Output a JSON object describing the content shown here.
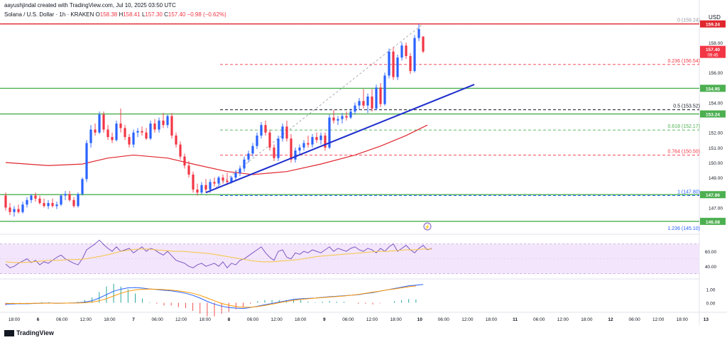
{
  "header": {
    "credit": "aayushjindal created with TradingView.com, Jul 10, 2025 03:50 UTC",
    "symbol": "Solana / U.S. Dollar · 1h · KRAKEN",
    "o_label": "O",
    "o": "158.38",
    "h_label": "H",
    "h": "158.41",
    "l_label": "L",
    "l": "157.30",
    "c_label": "C",
    "c": "157.40",
    "change": "−0.98 (−0.62%)",
    "currency": "USD"
  },
  "footer": {
    "brand": "TradingView"
  },
  "colors": {
    "up": "#2962ff",
    "down": "#f23645",
    "level": "#4caf50",
    "trend": "#1e2ecc",
    "sma": "#e0262e",
    "fib": "#f23645",
    "fib_green": "#4caf50",
    "fib_blue": "#2962ff",
    "rsi": "#7e57c2",
    "rsi_ma": "#f5c542",
    "macd": "#2962ff",
    "macd_signal": "#ff9800",
    "hist": "#26a69a",
    "hist_neg": "#ef5350"
  },
  "chart_data": {
    "type": "candlestick",
    "price_scale": {
      "ticks": [
        "158.00",
        "156.00",
        "155.00",
        "154.00",
        "152.00",
        "151.00",
        "150.00",
        "149.00",
        "147.00"
      ],
      "current_price": "157.40",
      "countdown": "09:45"
    },
    "time_ticks": [
      "18:00",
      "6",
      "06:00",
      "12:00",
      "18:00",
      "7",
      "06:00",
      "12:00",
      "18:00",
      "8",
      "06:00",
      "12:00",
      "18:00",
      "9",
      "06:00",
      "12:00",
      "18:00",
      "10",
      "06:00",
      "12:00",
      "18:00",
      "11",
      "06:00",
      "12:00",
      "18:00",
      "12",
      "06:00",
      "12:00",
      "18:00",
      "13"
    ],
    "candles": [
      {
        "o": 147.8,
        "h": 148.0,
        "l": 146.8,
        "c": 147.0
      },
      {
        "o": 147.0,
        "h": 147.3,
        "l": 146.5,
        "c": 146.7
      },
      {
        "o": 146.7,
        "h": 147.1,
        "l": 146.4,
        "c": 146.9
      },
      {
        "o": 146.9,
        "h": 147.2,
        "l": 146.6,
        "c": 146.7
      },
      {
        "o": 146.7,
        "h": 147.4,
        "l": 146.6,
        "c": 147.2
      },
      {
        "o": 147.2,
        "h": 147.7,
        "l": 147.0,
        "c": 147.5
      },
      {
        "o": 147.5,
        "h": 147.9,
        "l": 147.3,
        "c": 147.8
      },
      {
        "o": 147.8,
        "h": 148.0,
        "l": 147.4,
        "c": 147.6
      },
      {
        "o": 147.6,
        "h": 147.8,
        "l": 147.2,
        "c": 147.3
      },
      {
        "o": 147.3,
        "h": 147.6,
        "l": 147.0,
        "c": 147.1
      },
      {
        "o": 147.1,
        "h": 147.5,
        "l": 146.9,
        "c": 147.3
      },
      {
        "o": 147.3,
        "h": 147.6,
        "l": 147.0,
        "c": 147.1
      },
      {
        "o": 147.1,
        "h": 147.4,
        "l": 146.9,
        "c": 147.2
      },
      {
        "o": 147.2,
        "h": 147.9,
        "l": 147.1,
        "c": 147.8
      },
      {
        "o": 147.8,
        "h": 148.1,
        "l": 147.5,
        "c": 147.9
      },
      {
        "o": 147.9,
        "h": 148.1,
        "l": 147.4,
        "c": 147.5
      },
      {
        "o": 147.5,
        "h": 147.7,
        "l": 147.0,
        "c": 147.1
      },
      {
        "o": 147.1,
        "h": 148.0,
        "l": 147.0,
        "c": 147.9
      },
      {
        "o": 147.9,
        "h": 149.0,
        "l": 147.8,
        "c": 148.9
      },
      {
        "o": 148.9,
        "h": 151.5,
        "l": 148.7,
        "c": 151.3
      },
      {
        "o": 151.3,
        "h": 152.5,
        "l": 151.0,
        "c": 152.2
      },
      {
        "o": 152.2,
        "h": 152.6,
        "l": 151.8,
        "c": 152.0
      },
      {
        "o": 152.0,
        "h": 153.4,
        "l": 151.9,
        "c": 153.2
      },
      {
        "o": 153.2,
        "h": 153.4,
        "l": 152.0,
        "c": 152.2
      },
      {
        "o": 152.2,
        "h": 152.5,
        "l": 151.5,
        "c": 151.7
      },
      {
        "o": 151.7,
        "h": 152.0,
        "l": 151.3,
        "c": 151.5
      },
      {
        "o": 151.5,
        "h": 152.8,
        "l": 151.4,
        "c": 152.6
      },
      {
        "o": 152.6,
        "h": 153.6,
        "l": 152.0,
        "c": 152.3
      },
      {
        "o": 152.3,
        "h": 152.5,
        "l": 151.5,
        "c": 151.7
      },
      {
        "o": 151.7,
        "h": 151.9,
        "l": 151.0,
        "c": 151.2
      },
      {
        "o": 151.2,
        "h": 152.2,
        "l": 151.0,
        "c": 152.0
      },
      {
        "o": 152.0,
        "h": 152.3,
        "l": 151.7,
        "c": 152.1
      },
      {
        "o": 152.1,
        "h": 152.4,
        "l": 151.8,
        "c": 152.0
      },
      {
        "o": 152.0,
        "h": 152.3,
        "l": 151.5,
        "c": 151.6
      },
      {
        "o": 151.6,
        "h": 152.8,
        "l": 151.5,
        "c": 152.6
      },
      {
        "o": 152.6,
        "h": 152.9,
        "l": 152.0,
        "c": 152.2
      },
      {
        "o": 152.2,
        "h": 153.0,
        "l": 152.0,
        "c": 152.8
      },
      {
        "o": 152.8,
        "h": 153.3,
        "l": 152.3,
        "c": 152.5
      },
      {
        "o": 152.5,
        "h": 153.2,
        "l": 152.3,
        "c": 153.1
      },
      {
        "o": 153.1,
        "h": 153.3,
        "l": 151.6,
        "c": 151.8
      },
      {
        "o": 151.8,
        "h": 152.0,
        "l": 151.0,
        "c": 151.2
      },
      {
        "o": 151.2,
        "h": 151.4,
        "l": 150.2,
        "c": 150.4
      },
      {
        "o": 150.4,
        "h": 150.6,
        "l": 149.6,
        "c": 149.8
      },
      {
        "o": 149.8,
        "h": 150.1,
        "l": 149.0,
        "c": 149.2
      },
      {
        "o": 149.2,
        "h": 149.4,
        "l": 148.0,
        "c": 148.2
      },
      {
        "o": 148.2,
        "h": 148.6,
        "l": 147.8,
        "c": 148.0
      },
      {
        "o": 148.0,
        "h": 148.7,
        "l": 147.9,
        "c": 148.5
      },
      {
        "o": 148.5,
        "h": 148.9,
        "l": 148.0,
        "c": 148.2
      },
      {
        "o": 148.2,
        "h": 148.9,
        "l": 148.1,
        "c": 148.7
      },
      {
        "o": 148.7,
        "h": 149.0,
        "l": 148.4,
        "c": 148.6
      },
      {
        "o": 148.6,
        "h": 149.1,
        "l": 148.4,
        "c": 149.0
      },
      {
        "o": 149.0,
        "h": 149.2,
        "l": 148.6,
        "c": 148.8
      },
      {
        "o": 148.8,
        "h": 149.3,
        "l": 148.5,
        "c": 148.7
      },
      {
        "o": 148.7,
        "h": 149.1,
        "l": 148.6,
        "c": 149.0
      },
      {
        "o": 149.0,
        "h": 149.5,
        "l": 148.8,
        "c": 149.3
      },
      {
        "o": 149.3,
        "h": 149.8,
        "l": 149.1,
        "c": 149.6
      },
      {
        "o": 149.6,
        "h": 150.4,
        "l": 149.4,
        "c": 150.2
      },
      {
        "o": 150.2,
        "h": 150.8,
        "l": 150.0,
        "c": 150.6
      },
      {
        "o": 150.6,
        "h": 151.3,
        "l": 150.4,
        "c": 151.1
      },
      {
        "o": 151.1,
        "h": 152.0,
        "l": 150.9,
        "c": 151.8
      },
      {
        "o": 151.8,
        "h": 152.7,
        "l": 151.6,
        "c": 152.5
      },
      {
        "o": 152.5,
        "h": 152.8,
        "l": 151.8,
        "c": 152.0
      },
      {
        "o": 152.0,
        "h": 152.2,
        "l": 150.8,
        "c": 151.0
      },
      {
        "o": 151.0,
        "h": 151.2,
        "l": 150.1,
        "c": 150.3
      },
      {
        "o": 150.3,
        "h": 151.8,
        "l": 150.1,
        "c": 151.6
      },
      {
        "o": 151.6,
        "h": 152.6,
        "l": 151.4,
        "c": 152.4
      },
      {
        "o": 152.4,
        "h": 152.8,
        "l": 151.4,
        "c": 151.6
      },
      {
        "o": 151.6,
        "h": 151.9,
        "l": 150.0,
        "c": 150.2
      },
      {
        "o": 150.2,
        "h": 151.0,
        "l": 150.0,
        "c": 150.8
      },
      {
        "o": 150.8,
        "h": 151.2,
        "l": 150.5,
        "c": 151.0
      },
      {
        "o": 151.0,
        "h": 151.5,
        "l": 150.8,
        "c": 151.3
      },
      {
        "o": 151.3,
        "h": 151.8,
        "l": 151.0,
        "c": 151.2
      },
      {
        "o": 151.2,
        "h": 151.9,
        "l": 151.0,
        "c": 151.7
      },
      {
        "o": 151.7,
        "h": 152.0,
        "l": 151.3,
        "c": 151.5
      },
      {
        "o": 151.5,
        "h": 152.0,
        "l": 151.2,
        "c": 151.8
      },
      {
        "o": 151.8,
        "h": 152.0,
        "l": 150.8,
        "c": 151.0
      },
      {
        "o": 151.0,
        "h": 153.2,
        "l": 150.9,
        "c": 153.0
      },
      {
        "o": 153.0,
        "h": 153.5,
        "l": 152.6,
        "c": 152.8
      },
      {
        "o": 152.8,
        "h": 153.1,
        "l": 152.5,
        "c": 152.9
      },
      {
        "o": 152.9,
        "h": 153.3,
        "l": 152.6,
        "c": 153.1
      },
      {
        "o": 153.1,
        "h": 153.4,
        "l": 152.8,
        "c": 153.0
      },
      {
        "o": 153.0,
        "h": 153.6,
        "l": 152.9,
        "c": 153.4
      },
      {
        "o": 153.4,
        "h": 154.0,
        "l": 153.2,
        "c": 153.8
      },
      {
        "o": 153.8,
        "h": 154.3,
        "l": 153.5,
        "c": 154.1
      },
      {
        "o": 154.1,
        "h": 154.9,
        "l": 153.6,
        "c": 153.8
      },
      {
        "o": 153.8,
        "h": 154.6,
        "l": 153.3,
        "c": 154.4
      },
      {
        "o": 154.4,
        "h": 154.9,
        "l": 153.4,
        "c": 153.6
      },
      {
        "o": 153.6,
        "h": 155.2,
        "l": 153.5,
        "c": 155.0
      },
      {
        "o": 155.0,
        "h": 155.3,
        "l": 153.7,
        "c": 153.9
      },
      {
        "o": 153.9,
        "h": 156.0,
        "l": 153.8,
        "c": 155.8
      },
      {
        "o": 155.8,
        "h": 157.6,
        "l": 155.6,
        "c": 157.4
      },
      {
        "o": 157.4,
        "h": 157.7,
        "l": 155.5,
        "c": 155.7
      },
      {
        "o": 155.7,
        "h": 157.2,
        "l": 155.5,
        "c": 157.0
      },
      {
        "o": 157.0,
        "h": 158.0,
        "l": 156.8,
        "c": 157.8
      },
      {
        "o": 157.8,
        "h": 158.0,
        "l": 156.9,
        "c": 157.1
      },
      {
        "o": 157.1,
        "h": 157.3,
        "l": 155.9,
        "c": 156.1
      },
      {
        "o": 156.1,
        "h": 158.5,
        "l": 156.0,
        "c": 158.3
      },
      {
        "o": 158.3,
        "h": 159.24,
        "l": 158.1,
        "c": 158.9
      },
      {
        "o": 158.4,
        "h": 158.41,
        "l": 157.3,
        "c": 157.4
      }
    ],
    "sma": [
      {
        "i": 0,
        "v": 150.0
      },
      {
        "i": 10,
        "v": 149.8
      },
      {
        "i": 18,
        "v": 149.9
      },
      {
        "i": 24,
        "v": 150.3
      },
      {
        "i": 30,
        "v": 150.5
      },
      {
        "i": 38,
        "v": 150.3
      },
      {
        "i": 44,
        "v": 149.9
      },
      {
        "i": 52,
        "v": 149.4
      },
      {
        "i": 58,
        "v": 149.2
      },
      {
        "i": 66,
        "v": 149.4
      },
      {
        "i": 74,
        "v": 149.9
      },
      {
        "i": 82,
        "v": 150.5
      },
      {
        "i": 88,
        "v": 151.1
      },
      {
        "i": 94,
        "v": 151.8
      },
      {
        "i": 99,
        "v": 152.5
      }
    ],
    "horizontal_levels": [
      {
        "price": 159.24,
        "label": "159.24",
        "color": "red"
      },
      {
        "price": 154.95,
        "label": "154.95",
        "color": "green"
      },
      {
        "price": 153.24,
        "label": "153.24",
        "color": "green"
      },
      {
        "price": 147.86,
        "label": "147.86",
        "color": "green"
      },
      {
        "price": 146.08,
        "label": "146.08",
        "color": "green"
      }
    ],
    "trendline": {
      "i1": 47,
      "p1": 148.0,
      "i2": 110,
      "p2": 155.2
    },
    "fib_diag": {
      "i1": 47,
      "p1": 147.8,
      "i2": 98,
      "p2": 159.24
    },
    "fibonacci": [
      {
        "ratio": "0",
        "price": 159.24,
        "label": "0 (159.24)",
        "color": "gray"
      },
      {
        "ratio": "0.236",
        "price": 156.54,
        "label": "0.236 (156.54)",
        "color": "red"
      },
      {
        "ratio": "0.5",
        "price": 153.52,
        "label": "0.5 (153.52)",
        "color": "dark"
      },
      {
        "ratio": "0.618",
        "price": 152.17,
        "label": "0.618 (152.17)",
        "color": "green"
      },
      {
        "ratio": "0.764",
        "price": 150.5,
        "label": "0.764 (150.50)",
        "color": "red"
      },
      {
        "ratio": "1",
        "price": 147.8,
        "label": "1 (147.80)",
        "color": "blue"
      },
      {
        "ratio": "1.236",
        "price": 145.1,
        "label": "1.236 (145.10)",
        "color": "blue"
      }
    ],
    "rsi": {
      "ticks": [
        "60.00",
        "40.00"
      ],
      "values": [
        43,
        38,
        40,
        44,
        47,
        50,
        45,
        48,
        42,
        46,
        44,
        48,
        52,
        55,
        50,
        47,
        44,
        42,
        50,
        62,
        66,
        70,
        75,
        69,
        64,
        60,
        66,
        60,
        62,
        64,
        58,
        62,
        66,
        60,
        64,
        62,
        58,
        55,
        60,
        54,
        48,
        46,
        44,
        40,
        38,
        42,
        44,
        40,
        42,
        44,
        40,
        46,
        38,
        44,
        42,
        48,
        50,
        54,
        58,
        62,
        66,
        58,
        52,
        48,
        60,
        62,
        52,
        50,
        58,
        56,
        60,
        58,
        62,
        60,
        58,
        62,
        66,
        60,
        64,
        62,
        60,
        64,
        66,
        62,
        60,
        64,
        62,
        58,
        64,
        60,
        66,
        70,
        60,
        64,
        68,
        62,
        58,
        64,
        68,
        62,
        64
      ],
      "ma": [
        46,
        45,
        45,
        46,
        47,
        48,
        48,
        49,
        49,
        50,
        52,
        54,
        57,
        60,
        62,
        63,
        63,
        62,
        61,
        60,
        60,
        59,
        58,
        57,
        55,
        53,
        51,
        49,
        47,
        46,
        46,
        47,
        48,
        49,
        51,
        53,
        54,
        55,
        56,
        57,
        58,
        59,
        60,
        60,
        61,
        62,
        62,
        63,
        63
      ]
    },
    "macd": {
      "ticks": [
        "1.00",
        "0.00"
      ],
      "macd": [
        -0.1,
        -0.08,
        -0.06,
        -0.07,
        -0.05,
        -0.03,
        -0.02,
        -0.04,
        -0.03,
        -0.02,
        0.0,
        0.05,
        0.15,
        0.35,
        0.6,
        0.85,
        1.0,
        1.1,
        1.12,
        1.08,
        1.02,
        0.98,
        0.92,
        0.88,
        0.8,
        0.7,
        0.55,
        0.35,
        0.1,
        -0.1,
        -0.25,
        -0.35,
        -0.4,
        -0.42,
        -0.35,
        -0.25,
        -0.15,
        -0.05,
        0.05,
        0.15,
        0.25,
        0.3,
        0.32,
        0.35,
        0.4,
        0.45,
        0.48,
        0.52,
        0.55,
        0.6,
        0.68,
        0.75,
        0.85,
        0.95,
        1.05,
        1.15,
        1.25,
        1.3,
        1.35
      ],
      "signal": [
        -0.05,
        -0.05,
        -0.05,
        -0.05,
        -0.04,
        -0.04,
        -0.03,
        -0.03,
        -0.03,
        -0.02,
        -0.02,
        0.0,
        0.05,
        0.15,
        0.3,
        0.5,
        0.7,
        0.85,
        0.95,
        1.0,
        1.01,
        1.0,
        0.97,
        0.93,
        0.88,
        0.8,
        0.7,
        0.55,
        0.35,
        0.15,
        -0.05,
        -0.18,
        -0.28,
        -0.33,
        -0.33,
        -0.28,
        -0.2,
        -0.1,
        0.0,
        0.1,
        0.18,
        0.25,
        0.3,
        0.34,
        0.38,
        0.42,
        0.46,
        0.5,
        0.55,
        0.62,
        0.7,
        0.78,
        0.86,
        0.95,
        1.02,
        1.1,
        1.18,
        1.24
      ]
    }
  }
}
